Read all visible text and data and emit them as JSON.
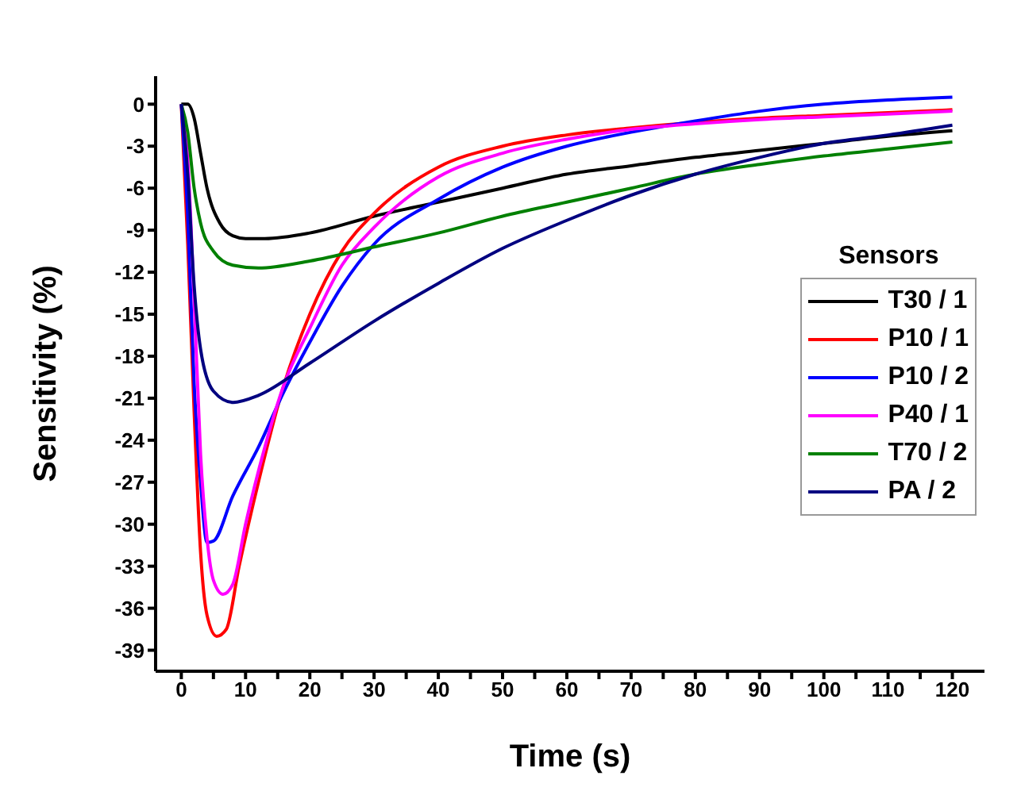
{
  "chart_data": {
    "type": "line",
    "xlabel": "Time (s)",
    "ylabel": "Sensitivity (%)",
    "legend_title": "Sensors",
    "legend": "right",
    "grid": false,
    "marker": "none",
    "line_style": "solid",
    "xlim": [
      -4,
      125
    ],
    "ylim": [
      -40.5,
      2
    ],
    "xticks": [
      0,
      {
        "value": 5,
        "label": null
      },
      10,
      {
        "value": 15,
        "label": null
      },
      20,
      {
        "value": 25,
        "label": null
      },
      30,
      {
        "value": 35,
        "label": null
      },
      40,
      {
        "value": 45,
        "label": null
      },
      50,
      {
        "value": 55,
        "label": null
      },
      60,
      {
        "value": 65,
        "label": null
      },
      70,
      {
        "value": 75,
        "label": null
      },
      80,
      {
        "value": 85,
        "label": null
      },
      90,
      {
        "value": 95,
        "label": null
      },
      100,
      {
        "value": 105,
        "label": null
      },
      110,
      {
        "value": 115,
        "label": null
      },
      120
    ],
    "yticks": [
      0,
      -3,
      -6,
      -9,
      -12,
      -15,
      -18,
      -21,
      -24,
      -27,
      -30,
      -33,
      -36,
      -39
    ],
    "series": [
      {
        "name": "T30 / 1",
        "color": "#000000",
        "x": [
          0,
          1,
          2,
          3,
          4,
          6,
          8,
          10,
          13,
          20,
          30,
          40,
          50,
          60,
          70,
          80,
          90,
          100,
          110,
          120
        ],
        "values": [
          0,
          0,
          -1,
          -3.5,
          -6,
          -8.5,
          -9.4,
          -9.6,
          -9.6,
          -9.2,
          -8,
          -7,
          -6,
          -5,
          -4.4,
          -3.8,
          -3.3,
          -2.8,
          -2.3,
          -1.9
        ]
      },
      {
        "name": "P10 / 1",
        "color": "#ff0000",
        "x": [
          0,
          1,
          2,
          3,
          4,
          5.5,
          7,
          9,
          12,
          16,
          20,
          25,
          30,
          40,
          50,
          60,
          70,
          80,
          90,
          100,
          110,
          120
        ],
        "values": [
          0,
          -10,
          -22,
          -32,
          -36.5,
          -38,
          -37.5,
          -33,
          -27,
          -20,
          -15,
          -10.5,
          -7.8,
          -4.5,
          -3,
          -2.2,
          -1.7,
          -1.3,
          -1.0,
          -0.8,
          -0.6,
          -0.4
        ]
      },
      {
        "name": "P10 / 2",
        "color": "#0000ff",
        "x": [
          0,
          1,
          2,
          3,
          4,
          5,
          8,
          12,
          16,
          20,
          25,
          30,
          40,
          50,
          60,
          70,
          80,
          90,
          100,
          110,
          120
        ],
        "values": [
          0,
          -8,
          -20,
          -27,
          -31.3,
          -31.2,
          -28,
          -24.5,
          -20.5,
          -17,
          -13,
          -10,
          -6.8,
          -4.5,
          -3,
          -2,
          -1.2,
          -0.5,
          0,
          0.3,
          0.5
        ]
      },
      {
        "name": "P40 / 1",
        "color": "#ff00ff",
        "x": [
          0,
          1,
          2,
          3,
          4,
          5,
          6.5,
          8,
          10,
          13,
          16,
          20,
          25,
          30,
          40,
          50,
          60,
          70,
          80,
          90,
          100,
          110,
          120
        ],
        "values": [
          0,
          -4,
          -14,
          -25,
          -31,
          -34,
          -35,
          -34.3,
          -30,
          -24.5,
          -20,
          -16,
          -11.5,
          -8.8,
          -5.2,
          -3.5,
          -2.5,
          -1.8,
          -1.4,
          -1.1,
          -0.9,
          -0.7,
          -0.5
        ]
      },
      {
        "name": "T70 / 2",
        "color": "#008000",
        "x": [
          0,
          1,
          2,
          3,
          5,
          8,
          12,
          20,
          30,
          40,
          50,
          60,
          70,
          80,
          90,
          100,
          110,
          120
        ],
        "values": [
          0,
          -2,
          -6,
          -8.5,
          -10.5,
          -11.5,
          -11.7,
          -11.2,
          -10.2,
          -9.2,
          -8,
          -7,
          -6,
          -5,
          -4.3,
          -3.7,
          -3.2,
          -2.7
        ]
      },
      {
        "name": "PA / 2",
        "color": "#000080",
        "x": [
          0,
          1,
          2,
          3,
          5,
          8,
          12,
          20,
          30,
          40,
          50,
          60,
          70,
          80,
          90,
          100,
          110,
          120
        ],
        "values": [
          0,
          -5,
          -13,
          -17.5,
          -20.5,
          -21.3,
          -20.8,
          -18.5,
          -15.5,
          -12.8,
          -10.3,
          -8.3,
          -6.5,
          -5,
          -3.8,
          -2.8,
          -2.2,
          -1.5
        ]
      }
    ]
  }
}
